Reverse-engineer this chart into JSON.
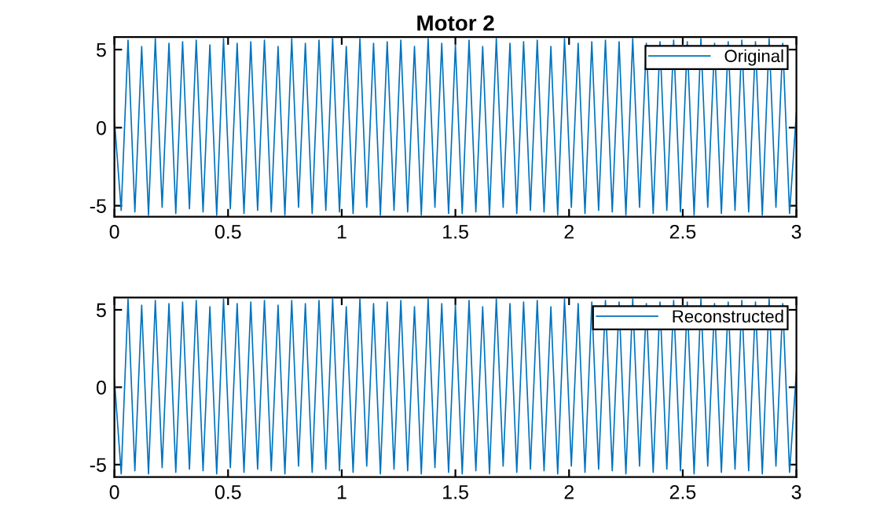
{
  "chart_data": [
    {
      "type": "line",
      "title": "Motor 2",
      "legend": "top right",
      "grid": false,
      "xlim": [
        0,
        3
      ],
      "xticks": [
        0,
        0.5,
        1,
        1.5,
        2,
        2.5,
        3
      ],
      "ylim": [
        -5.7,
        5.8
      ],
      "yticks": [
        -5,
        0,
        5
      ],
      "x": [
        0,
        0.03,
        0.06,
        0.09,
        0.12,
        0.15,
        0.18,
        0.21,
        0.24,
        0.27,
        0.3,
        0.33,
        0.36,
        0.39,
        0.42,
        0.45,
        0.48,
        0.51,
        0.54,
        0.57,
        0.6,
        0.63,
        0.66,
        0.69,
        0.72,
        0.75,
        0.78,
        0.81,
        0.84,
        0.87,
        0.9,
        0.93,
        0.96,
        0.99,
        1.02,
        1.05,
        1.08,
        1.11,
        1.14,
        1.17,
        1.2,
        1.23,
        1.26,
        1.29,
        1.32,
        1.35,
        1.38,
        1.41,
        1.44,
        1.47,
        1.5,
        1.53,
        1.56,
        1.59,
        1.62,
        1.65,
        1.68,
        1.71,
        1.74,
        1.77,
        1.8,
        1.83,
        1.86,
        1.89,
        1.92,
        1.95,
        1.98,
        2.01,
        2.04,
        2.07,
        2.1,
        2.13,
        2.16,
        2.19,
        2.22,
        2.25,
        2.28,
        2.31,
        2.34,
        2.37,
        2.4,
        2.43,
        2.46,
        2.49,
        2.52,
        2.55,
        2.58,
        2.61,
        2.64,
        2.67,
        2.7,
        2.73,
        2.76,
        2.79,
        2.82,
        2.85,
        2.88,
        2.91,
        2.94,
        2.97,
        3.0
      ],
      "series": [
        {
          "name": "Original",
          "color": "#0072bd",
          "values": [
            0.5,
            -5.3,
            5.6,
            -5.4,
            5.2,
            -5.6,
            5.7,
            -5.1,
            5.4,
            -5.5,
            5.5,
            -5.2,
            5.6,
            -5.4,
            5.3,
            -5.6,
            5.7,
            -5.2,
            5.4,
            -5.5,
            5.5,
            -5.3,
            5.6,
            -5.4,
            5.2,
            -5.6,
            5.7,
            -5.1,
            5.4,
            -5.5,
            5.6,
            -5.3,
            5.7,
            -5.4,
            5.2,
            -5.5,
            5.7,
            -5.1,
            5.4,
            -5.6,
            5.5,
            -5.3,
            5.6,
            -5.4,
            5.2,
            -5.6,
            5.7,
            -5.1,
            5.4,
            -5.5,
            5.3,
            -5.5,
            5.6,
            -5.4,
            5.2,
            -5.6,
            5.7,
            -5.1,
            5.4,
            -5.5,
            5.5,
            -5.3,
            5.6,
            -5.4,
            5.2,
            -5.6,
            5.7,
            -5.1,
            5.4,
            -5.5,
            5.5,
            -5.3,
            5.6,
            -5.4,
            5.5,
            -5.6,
            5.7,
            -5.1,
            5.4,
            -5.5,
            5.5,
            -5.3,
            5.6,
            -5.4,
            5.5,
            -5.6,
            5.7,
            -5.1,
            5.4,
            -5.5,
            5.5,
            -5.3,
            5.6,
            -5.4,
            5.5,
            -5.6,
            5.7,
            -5.1,
            5.4,
            -5.5,
            1.0
          ]
        }
      ]
    },
    {
      "type": "line",
      "legend": "top right",
      "grid": false,
      "xlim": [
        0,
        3
      ],
      "xticks": [
        0,
        0.5,
        1,
        1.5,
        2,
        2.5,
        3
      ],
      "ylim": [
        -5.8,
        5.8
      ],
      "yticks": [
        -5,
        0,
        5
      ],
      "x": [
        0,
        0.03,
        0.06,
        0.09,
        0.12,
        0.15,
        0.18,
        0.21,
        0.24,
        0.27,
        0.3,
        0.33,
        0.36,
        0.39,
        0.42,
        0.45,
        0.48,
        0.51,
        0.54,
        0.57,
        0.6,
        0.63,
        0.66,
        0.69,
        0.72,
        0.75,
        0.78,
        0.81,
        0.84,
        0.87,
        0.9,
        0.93,
        0.96,
        0.99,
        1.02,
        1.05,
        1.08,
        1.11,
        1.14,
        1.17,
        1.2,
        1.23,
        1.26,
        1.29,
        1.32,
        1.35,
        1.38,
        1.41,
        1.44,
        1.47,
        1.5,
        1.53,
        1.56,
        1.59,
        1.62,
        1.65,
        1.68,
        1.71,
        1.74,
        1.77,
        1.8,
        1.83,
        1.86,
        1.89,
        1.92,
        1.95,
        1.98,
        2.01,
        2.04,
        2.07,
        2.1,
        2.13,
        2.16,
        2.19,
        2.22,
        2.25,
        2.28,
        2.31,
        2.34,
        2.37,
        2.4,
        2.43,
        2.46,
        2.49,
        2.52,
        2.55,
        2.58,
        2.61,
        2.64,
        2.67,
        2.7,
        2.73,
        2.76,
        2.79,
        2.82,
        2.85,
        2.88,
        2.91,
        2.94,
        2.97,
        3.0
      ],
      "series": [
        {
          "name": "Reconstructed",
          "color": "#0072bd",
          "values": [
            0.5,
            -5.6,
            5.7,
            -5.4,
            5.3,
            -5.6,
            5.6,
            -5.2,
            5.4,
            -5.5,
            5.5,
            -5.3,
            5.6,
            -5.4,
            5.2,
            -5.6,
            5.7,
            -5.2,
            5.4,
            -5.5,
            5.5,
            -5.3,
            5.6,
            -5.4,
            5.3,
            -5.6,
            5.6,
            -5.1,
            5.4,
            -5.5,
            5.6,
            -5.3,
            5.7,
            -5.4,
            5.2,
            -5.5,
            5.7,
            -5.1,
            5.4,
            -5.6,
            5.5,
            -5.3,
            5.6,
            -5.4,
            5.2,
            -5.6,
            5.7,
            -5.2,
            5.4,
            -5.5,
            5.3,
            -5.6,
            5.6,
            -5.4,
            5.2,
            -5.6,
            5.7,
            -5.1,
            5.4,
            -5.5,
            5.5,
            -5.3,
            5.6,
            -5.4,
            5.2,
            -5.6,
            5.7,
            -5.1,
            5.4,
            -5.5,
            5.5,
            -5.3,
            5.6,
            -5.4,
            5.5,
            -5.6,
            5.7,
            -5.1,
            5.4,
            -5.5,
            5.5,
            -5.3,
            5.6,
            -5.4,
            5.5,
            -5.6,
            5.7,
            -5.1,
            5.4,
            -5.5,
            5.5,
            -5.3,
            5.6,
            -5.4,
            5.5,
            -5.6,
            5.7,
            -5.1,
            5.4,
            -5.5,
            1.0
          ]
        }
      ]
    }
  ]
}
